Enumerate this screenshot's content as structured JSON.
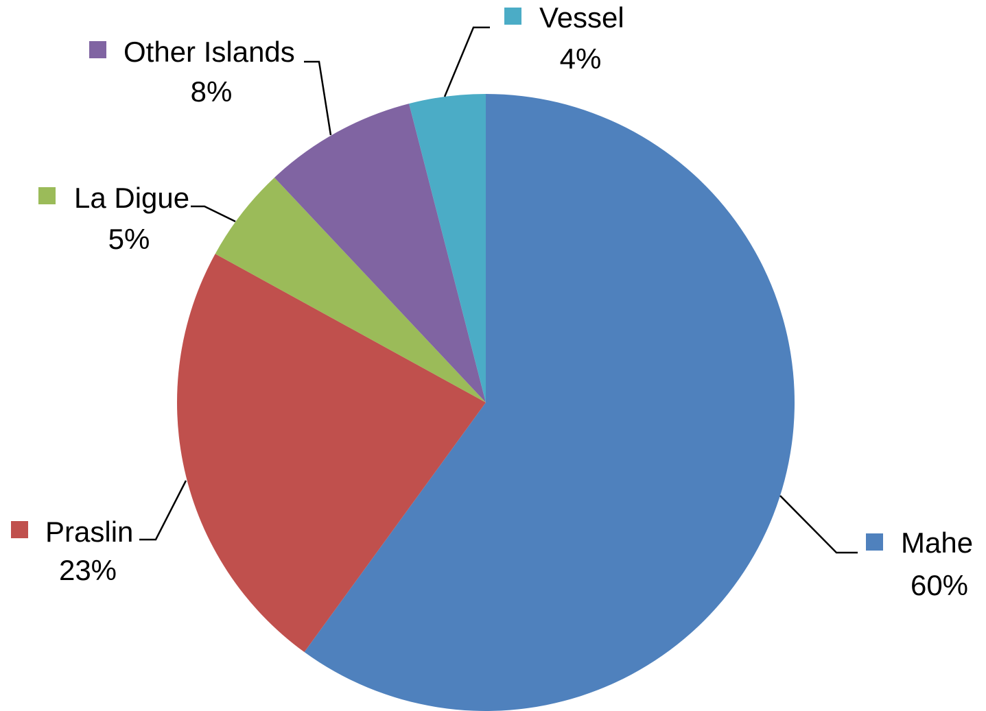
{
  "chart_data": {
    "type": "pie",
    "title": "",
    "slices": [
      {
        "name": "Mahe",
        "value": 60,
        "label": "60%",
        "color": "#4F81BD"
      },
      {
        "name": "Praslin",
        "value": 23,
        "label": "23%",
        "color": "#C0504D"
      },
      {
        "name": "La Digue",
        "value": 5,
        "label": "5%",
        "color": "#9BBB59"
      },
      {
        "name": "Other Islands",
        "value": 8,
        "label": "8%",
        "color": "#8064A2"
      },
      {
        "name": "Vessel",
        "value": 4,
        "label": "4%",
        "color": "#4BACC6"
      }
    ],
    "start_angle_deg": 0,
    "direction": "clockwise",
    "legend": "none",
    "data_labels": "outside with leader lines, swatch + category name + percent"
  }
}
